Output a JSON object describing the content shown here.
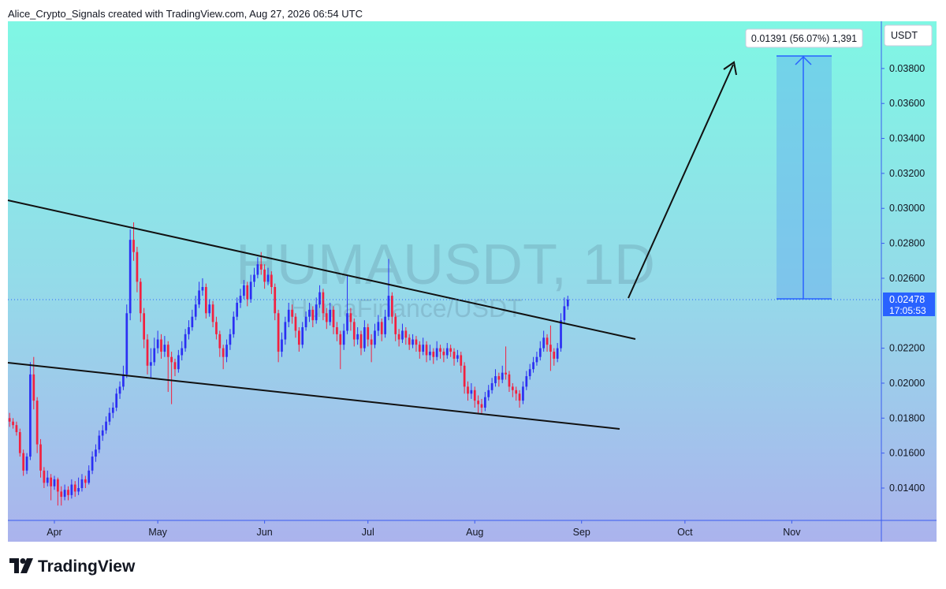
{
  "header": "Alice_Crypto_Signals created with TradingView.com, Aug 27, 2026 06:54 UTC",
  "brand": "TradingView",
  "chart_data": {
    "type": "candlestick",
    "currency": "USDT",
    "watermark": "HUMAUSDT, 1D",
    "watermark_sub": "HumaFinance/USDT",
    "measure_label": "0.01391 (56.07%) 1,391",
    "price_label": "0.02478",
    "countdown": "17:05:53",
    "up_color": "#2b2ff3",
    "down_color": "#f2203f",
    "xlim": [
      -0.5,
      253
    ],
    "xticks": [
      {
        "value": 13,
        "label": "Apr"
      },
      {
        "value": 43,
        "label": "May"
      },
      {
        "value": 74,
        "label": "Jun"
      },
      {
        "value": 104,
        "label": "Jul"
      },
      {
        "value": 135,
        "label": "Aug"
      },
      {
        "value": 166,
        "label": "Sep"
      },
      {
        "value": 196,
        "label": "Oct"
      },
      {
        "value": 227,
        "label": "Nov"
      }
    ],
    "ylim": [
      0.01215,
      0.0407
    ],
    "yticks": [
      {
        "value": 0.014,
        "label": "0.01400"
      },
      {
        "value": 0.016,
        "label": "0.01600"
      },
      {
        "value": 0.018,
        "label": "0.01800"
      },
      {
        "value": 0.02,
        "label": "0.02000"
      },
      {
        "value": 0.022,
        "label": "0.02200"
      },
      {
        "value": 0.026,
        "label": "0.02600"
      },
      {
        "value": 0.028,
        "label": "0.02800"
      },
      {
        "value": 0.03,
        "label": "0.03000"
      },
      {
        "value": 0.032,
        "label": "0.03200"
      },
      {
        "value": 0.034,
        "label": "0.03400"
      },
      {
        "value": 0.036,
        "label": "0.03600"
      },
      {
        "value": 0.038,
        "label": "0.03800"
      }
    ],
    "candles": [
      [
        0.018,
        0.0183,
        0.0175,
        0.0178
      ],
      [
        0.0178,
        0.018,
        0.0174,
        0.0176
      ],
      [
        0.0176,
        0.0178,
        0.017,
        0.0172
      ],
      [
        0.0172,
        0.0174,
        0.0158,
        0.016
      ],
      [
        0.016,
        0.0162,
        0.0147,
        0.015
      ],
      [
        0.015,
        0.016,
        0.0148,
        0.0158
      ],
      [
        0.0158,
        0.0212,
        0.0156,
        0.0205
      ],
      [
        0.0205,
        0.0215,
        0.0185,
        0.019
      ],
      [
        0.019,
        0.0192,
        0.016,
        0.0165
      ],
      [
        0.0165,
        0.0168,
        0.0146,
        0.015
      ],
      [
        0.015,
        0.0152,
        0.014,
        0.0143
      ],
      [
        0.0143,
        0.015,
        0.0141,
        0.0146
      ],
      [
        0.0146,
        0.0148,
        0.0133,
        0.0141
      ],
      [
        0.0141,
        0.0147,
        0.0139,
        0.0145
      ],
      [
        0.0145,
        0.0146,
        0.013,
        0.0138
      ],
      [
        0.0138,
        0.0141,
        0.013,
        0.0135
      ],
      [
        0.0135,
        0.0142,
        0.0133,
        0.0139
      ],
      [
        0.0139,
        0.0141,
        0.0133,
        0.0136
      ],
      [
        0.0136,
        0.0145,
        0.0134,
        0.0142
      ],
      [
        0.0142,
        0.0144,
        0.0135,
        0.0138
      ],
      [
        0.0138,
        0.0146,
        0.0136,
        0.014
      ],
      [
        0.014,
        0.0148,
        0.0138,
        0.0145
      ],
      [
        0.0145,
        0.0147,
        0.014,
        0.0143
      ],
      [
        0.0143,
        0.0153,
        0.0142,
        0.015
      ],
      [
        0.015,
        0.0161,
        0.0148,
        0.0158
      ],
      [
        0.0158,
        0.0165,
        0.0155,
        0.0162
      ],
      [
        0.0162,
        0.0173,
        0.016,
        0.017
      ],
      [
        0.017,
        0.0176,
        0.0167,
        0.0173
      ],
      [
        0.0173,
        0.0181,
        0.0171,
        0.0178
      ],
      [
        0.0178,
        0.0186,
        0.0176,
        0.0183
      ],
      [
        0.0183,
        0.0189,
        0.018,
        0.0186
      ],
      [
        0.0186,
        0.0197,
        0.0184,
        0.0194
      ],
      [
        0.0194,
        0.0201,
        0.0191,
        0.0198
      ],
      [
        0.0198,
        0.021,
        0.0196,
        0.0205
      ],
      [
        0.0205,
        0.0245,
        0.0203,
        0.024
      ],
      [
        0.024,
        0.0288,
        0.0236,
        0.0282
      ],
      [
        0.0282,
        0.0292,
        0.027,
        0.0275
      ],
      [
        0.0275,
        0.0278,
        0.0252,
        0.0258
      ],
      [
        0.0258,
        0.026,
        0.0235,
        0.024
      ],
      [
        0.024,
        0.0243,
        0.022,
        0.0225
      ],
      [
        0.0225,
        0.0228,
        0.0205,
        0.021
      ],
      [
        0.021,
        0.022,
        0.0203,
        0.0212
      ],
      [
        0.0212,
        0.0226,
        0.021,
        0.022
      ],
      [
        0.022,
        0.023,
        0.0217,
        0.0225
      ],
      [
        0.0225,
        0.0228,
        0.0214,
        0.0218
      ],
      [
        0.0218,
        0.0227,
        0.0215,
        0.0222
      ],
      [
        0.0222,
        0.0224,
        0.0195,
        0.0215
      ],
      [
        0.0215,
        0.0218,
        0.0188,
        0.0212
      ],
      [
        0.0212,
        0.0214,
        0.0204,
        0.0208
      ],
      [
        0.0208,
        0.0219,
        0.0206,
        0.0216
      ],
      [
        0.0216,
        0.0224,
        0.0213,
        0.022
      ],
      [
        0.022,
        0.0231,
        0.0218,
        0.0228
      ],
      [
        0.0228,
        0.0236,
        0.0225,
        0.0232
      ],
      [
        0.0232,
        0.0242,
        0.023,
        0.0238
      ],
      [
        0.0238,
        0.025,
        0.0236,
        0.0245
      ],
      [
        0.0245,
        0.0258,
        0.0243,
        0.0253
      ],
      [
        0.0253,
        0.026,
        0.025,
        0.0255
      ],
      [
        0.0255,
        0.0257,
        0.0237,
        0.024
      ],
      [
        0.024,
        0.0248,
        0.0238,
        0.0245
      ],
      [
        0.0245,
        0.0247,
        0.0232,
        0.0235
      ],
      [
        0.0235,
        0.0238,
        0.0225,
        0.0228
      ],
      [
        0.0228,
        0.023,
        0.0215,
        0.022
      ],
      [
        0.022,
        0.0222,
        0.0208,
        0.0215
      ],
      [
        0.0215,
        0.0225,
        0.0212,
        0.0222
      ],
      [
        0.0222,
        0.0231,
        0.0219,
        0.0228
      ],
      [
        0.0228,
        0.0241,
        0.0226,
        0.0238
      ],
      [
        0.0238,
        0.0249,
        0.0236,
        0.0246
      ],
      [
        0.0246,
        0.0254,
        0.0243,
        0.025
      ],
      [
        0.025,
        0.0259,
        0.0248,
        0.0256
      ],
      [
        0.0256,
        0.0258,
        0.0244,
        0.0248
      ],
      [
        0.0248,
        0.0262,
        0.0246,
        0.0258
      ],
      [
        0.0258,
        0.0266,
        0.0255,
        0.0262
      ],
      [
        0.0262,
        0.0272,
        0.026,
        0.0268
      ],
      [
        0.0268,
        0.0275,
        0.0262,
        0.0265
      ],
      [
        0.0265,
        0.0268,
        0.0254,
        0.0258
      ],
      [
        0.0258,
        0.0266,
        0.0256,
        0.0262
      ],
      [
        0.0262,
        0.0264,
        0.0251,
        0.0255
      ],
      [
        0.0255,
        0.0257,
        0.0236,
        0.024
      ],
      [
        0.024,
        0.0242,
        0.0212,
        0.0218
      ],
      [
        0.0218,
        0.0229,
        0.0215,
        0.0225
      ],
      [
        0.0225,
        0.0238,
        0.0222,
        0.0235
      ],
      [
        0.0235,
        0.0246,
        0.0232,
        0.0242
      ],
      [
        0.0242,
        0.0245,
        0.0234,
        0.0238
      ],
      [
        0.0238,
        0.024,
        0.0226,
        0.023
      ],
      [
        0.023,
        0.0232,
        0.0218,
        0.0222
      ],
      [
        0.0222,
        0.0235,
        0.022,
        0.0232
      ],
      [
        0.0232,
        0.0241,
        0.023,
        0.0238
      ],
      [
        0.0238,
        0.0246,
        0.0235,
        0.0242
      ],
      [
        0.0242,
        0.0244,
        0.0232,
        0.0236
      ],
      [
        0.0236,
        0.0249,
        0.0234,
        0.0245
      ],
      [
        0.0245,
        0.0256,
        0.0243,
        0.0252
      ],
      [
        0.0252,
        0.0254,
        0.0236,
        0.024
      ],
      [
        0.024,
        0.0243,
        0.0231,
        0.0235
      ],
      [
        0.0235,
        0.0246,
        0.0233,
        0.0242
      ],
      [
        0.0242,
        0.0244,
        0.0228,
        0.0232
      ],
      [
        0.0232,
        0.0235,
        0.0224,
        0.0228
      ],
      [
        0.0228,
        0.023,
        0.0208,
        0.0222
      ],
      [
        0.0222,
        0.0234,
        0.0219,
        0.023
      ],
      [
        0.023,
        0.0262,
        0.0228,
        0.024
      ],
      [
        0.024,
        0.0243,
        0.023,
        0.0235
      ],
      [
        0.0235,
        0.0237,
        0.0221,
        0.0225
      ],
      [
        0.0225,
        0.0232,
        0.0222,
        0.0228
      ],
      [
        0.0228,
        0.023,
        0.0216,
        0.022
      ],
      [
        0.022,
        0.0236,
        0.0218,
        0.0232
      ],
      [
        0.0232,
        0.0234,
        0.0221,
        0.0225
      ],
      [
        0.0225,
        0.0228,
        0.0212,
        0.0222
      ],
      [
        0.0222,
        0.0234,
        0.022,
        0.023
      ],
      [
        0.023,
        0.0239,
        0.0227,
        0.0235
      ],
      [
        0.0235,
        0.0237,
        0.0224,
        0.0228
      ],
      [
        0.0228,
        0.0242,
        0.0226,
        0.0238
      ],
      [
        0.0238,
        0.0271,
        0.0236,
        0.025
      ],
      [
        0.025,
        0.0252,
        0.0234,
        0.0238
      ],
      [
        0.0238,
        0.024,
        0.0224,
        0.0228
      ],
      [
        0.0228,
        0.0231,
        0.0221,
        0.0225
      ],
      [
        0.0225,
        0.0234,
        0.0223,
        0.023
      ],
      [
        0.023,
        0.0232,
        0.0222,
        0.0226
      ],
      [
        0.0226,
        0.0228,
        0.0219,
        0.0222
      ],
      [
        0.0222,
        0.0228,
        0.022,
        0.0225
      ],
      [
        0.0225,
        0.0227,
        0.0218,
        0.0222
      ],
      [
        0.0222,
        0.0224,
        0.0214,
        0.0218
      ],
      [
        0.0218,
        0.0226,
        0.0216,
        0.0222
      ],
      [
        0.0222,
        0.0224,
        0.0212,
        0.0216
      ],
      [
        0.0216,
        0.0222,
        0.0213,
        0.0218
      ],
      [
        0.0218,
        0.022,
        0.0211,
        0.0215
      ],
      [
        0.0215,
        0.0224,
        0.0213,
        0.022
      ],
      [
        0.022,
        0.0222,
        0.0214,
        0.0218
      ],
      [
        0.0218,
        0.022,
        0.0212,
        0.0216
      ],
      [
        0.0216,
        0.0223,
        0.0214,
        0.022
      ],
      [
        0.022,
        0.0222,
        0.0215,
        0.0218
      ],
      [
        0.0218,
        0.022,
        0.021,
        0.0214
      ],
      [
        0.0214,
        0.0219,
        0.0212,
        0.0216
      ],
      [
        0.0216,
        0.0218,
        0.0206,
        0.021
      ],
      [
        0.021,
        0.0212,
        0.0194,
        0.0198
      ],
      [
        0.0198,
        0.0201,
        0.019,
        0.0194
      ],
      [
        0.0194,
        0.02,
        0.0191,
        0.0196
      ],
      [
        0.0196,
        0.0198,
        0.0186,
        0.019
      ],
      [
        0.019,
        0.0193,
        0.0183,
        0.0188
      ],
      [
        0.0188,
        0.0191,
        0.0182,
        0.0186
      ],
      [
        0.0186,
        0.0195,
        0.0184,
        0.0192
      ],
      [
        0.0192,
        0.0199,
        0.019,
        0.0196
      ],
      [
        0.0196,
        0.0203,
        0.0194,
        0.02
      ],
      [
        0.02,
        0.0208,
        0.0198,
        0.0204
      ],
      [
        0.0204,
        0.0206,
        0.0198,
        0.0202
      ],
      [
        0.0202,
        0.021,
        0.02,
        0.0206
      ],
      [
        0.0206,
        0.0221,
        0.0202,
        0.0205
      ],
      [
        0.0205,
        0.0207,
        0.0195,
        0.0198
      ],
      [
        0.0198,
        0.02,
        0.0192,
        0.0196
      ],
      [
        0.0196,
        0.0198,
        0.019,
        0.0194
      ],
      [
        0.0194,
        0.0196,
        0.0186,
        0.019
      ],
      [
        0.019,
        0.0201,
        0.0188,
        0.0198
      ],
      [
        0.0198,
        0.0207,
        0.0196,
        0.0204
      ],
      [
        0.0204,
        0.0211,
        0.0202,
        0.0208
      ],
      [
        0.0208,
        0.0215,
        0.0206,
        0.0212
      ],
      [
        0.0212,
        0.0218,
        0.021,
        0.0215
      ],
      [
        0.0215,
        0.0224,
        0.0213,
        0.022
      ],
      [
        0.022,
        0.023,
        0.0218,
        0.0226
      ],
      [
        0.0226,
        0.0228,
        0.0218,
        0.0222
      ],
      [
        0.0222,
        0.0233,
        0.0207,
        0.0218
      ],
      [
        0.0218,
        0.022,
        0.021,
        0.0214
      ],
      [
        0.0214,
        0.0223,
        0.0212,
        0.022
      ],
      [
        0.022,
        0.024,
        0.0218,
        0.0236
      ],
      [
        0.0236,
        0.0249,
        0.0234,
        0.0244
      ],
      [
        0.0244,
        0.025,
        0.0242,
        0.02478
      ]
    ]
  }
}
